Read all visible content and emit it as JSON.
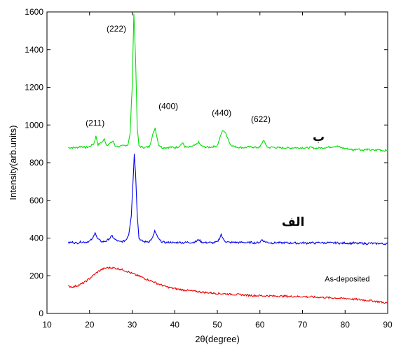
{
  "chart_data": {
    "type": "line",
    "title": "",
    "xlabel": "2θ(degree)",
    "ylabel": "Intensity(arb.units)",
    "xlim": [
      10,
      90
    ],
    "ylim": [
      0,
      1600
    ],
    "x_ticks": [
      "10",
      "20",
      "30",
      "40",
      "50",
      "60",
      "70",
      "80",
      "90"
    ],
    "y_ticks": [
      "0",
      "200",
      "400",
      "600",
      "800",
      "1000",
      "1200",
      "1400",
      "1600"
    ],
    "grid": false,
    "series": [
      {
        "name": "ب",
        "color": "#00e000",
        "points": [
          [
            15,
            880
          ],
          [
            17,
            880
          ],
          [
            18,
            887
          ],
          [
            19,
            880
          ],
          [
            20,
            885
          ],
          [
            21,
            900
          ],
          [
            21.5,
            940
          ],
          [
            22,
            895
          ],
          [
            23,
            910
          ],
          [
            23.5,
            925
          ],
          [
            24,
            893
          ],
          [
            25,
            905
          ],
          [
            25.5,
            915
          ],
          [
            26,
            888
          ],
          [
            27,
            885
          ],
          [
            28,
            890
          ],
          [
            29,
            895
          ],
          [
            29.5,
            950
          ],
          [
            30,
            1200
          ],
          [
            30.4,
            1590
          ],
          [
            30.8,
            1360
          ],
          [
            31.2,
            980
          ],
          [
            31.6,
            890
          ],
          [
            32,
            885
          ],
          [
            33,
            880
          ],
          [
            34,
            885
          ],
          [
            34.5,
            920
          ],
          [
            35,
            960
          ],
          [
            35.4,
            985
          ],
          [
            35.8,
            940
          ],
          [
            36.2,
            895
          ],
          [
            37,
            880
          ],
          [
            38,
            880
          ],
          [
            39,
            882
          ],
          [
            40,
            880
          ],
          [
            41,
            885
          ],
          [
            41.8,
            905
          ],
          [
            42.4,
            885
          ],
          [
            43,
            880
          ],
          [
            44,
            885
          ],
          [
            45,
            895
          ],
          [
            45.6,
            908
          ],
          [
            46.2,
            890
          ],
          [
            47,
            883
          ],
          [
            48,
            882
          ],
          [
            49,
            885
          ],
          [
            50,
            890
          ],
          [
            50.6,
            930
          ],
          [
            51,
            960
          ],
          [
            51.4,
            972
          ],
          [
            51.8,
            962
          ],
          [
            52.4,
            935
          ],
          [
            53,
            898
          ],
          [
            54,
            885
          ],
          [
            55,
            882
          ],
          [
            56,
            880
          ],
          [
            57,
            882
          ],
          [
            58,
            885
          ],
          [
            59,
            880
          ],
          [
            60,
            882
          ],
          [
            60.5,
            905
          ],
          [
            60.9,
            922
          ],
          [
            61.3,
            895
          ],
          [
            62,
            880
          ],
          [
            63,
            882
          ],
          [
            64,
            880
          ],
          [
            65,
            878
          ],
          [
            66,
            880
          ],
          [
            67,
            877
          ],
          [
            68,
            880
          ],
          [
            69,
            878
          ],
          [
            70,
            880
          ],
          [
            71,
            878
          ],
          [
            72,
            880
          ],
          [
            73,
            876
          ],
          [
            74,
            878
          ],
          [
            75,
            880
          ],
          [
            76,
            882
          ],
          [
            77,
            885
          ],
          [
            78,
            888
          ],
          [
            79,
            880
          ],
          [
            80,
            876
          ],
          [
            81,
            872
          ],
          [
            82,
            868
          ],
          [
            83,
            875
          ],
          [
            84,
            866
          ],
          [
            85,
            870
          ],
          [
            86,
            868
          ],
          [
            87,
            865
          ],
          [
            88,
            870
          ],
          [
            89,
            864
          ],
          [
            90,
            866
          ]
        ]
      },
      {
        "name": "الف",
        "color": "#0000ee",
        "points": [
          [
            15,
            375
          ],
          [
            16,
            378
          ],
          [
            17,
            373
          ],
          [
            18,
            380
          ],
          [
            19,
            378
          ],
          [
            20,
            383
          ],
          [
            20.8,
            400
          ],
          [
            21.3,
            432
          ],
          [
            21.8,
            398
          ],
          [
            22.5,
            386
          ],
          [
            23,
            380
          ],
          [
            24,
            385
          ],
          [
            24.8,
            400
          ],
          [
            25.3,
            412
          ],
          [
            25.8,
            395
          ],
          [
            26.5,
            386
          ],
          [
            27,
            380
          ],
          [
            28,
            383
          ],
          [
            28.6,
            392
          ],
          [
            29.2,
            420
          ],
          [
            29.8,
            520
          ],
          [
            30.2,
            700
          ],
          [
            30.5,
            845
          ],
          [
            30.8,
            750
          ],
          [
            31.2,
            520
          ],
          [
            31.6,
            400
          ],
          [
            32.2,
            386
          ],
          [
            33,
            380
          ],
          [
            34,
            382
          ],
          [
            34.8,
            400
          ],
          [
            35.3,
            438
          ],
          [
            35.8,
            412
          ],
          [
            36.4,
            390
          ],
          [
            37,
            380
          ],
          [
            38,
            376
          ],
          [
            39,
            378
          ],
          [
            40,
            374
          ],
          [
            41,
            378
          ],
          [
            42,
            375
          ],
          [
            43,
            378
          ],
          [
            44,
            376
          ],
          [
            45,
            381
          ],
          [
            45.6,
            392
          ],
          [
            46.2,
            380
          ],
          [
            47,
            375
          ],
          [
            48,
            377
          ],
          [
            49,
            374
          ],
          [
            50,
            380
          ],
          [
            50.5,
            398
          ],
          [
            50.9,
            420
          ],
          [
            51.3,
            396
          ],
          [
            52,
            381
          ],
          [
            53,
            376
          ],
          [
            54,
            378
          ],
          [
            55,
            376
          ],
          [
            56,
            378
          ],
          [
            57,
            375
          ],
          [
            58,
            377
          ],
          [
            59,
            374
          ],
          [
            60,
            378
          ],
          [
            60.5,
            392
          ],
          [
            61,
            382
          ],
          [
            62,
            376
          ],
          [
            63,
            374
          ],
          [
            64,
            376
          ],
          [
            65,
            374
          ],
          [
            66,
            376
          ],
          [
            67,
            373
          ],
          [
            68,
            375
          ],
          [
            69,
            372
          ],
          [
            70,
            375
          ],
          [
            71,
            373
          ],
          [
            72,
            376
          ],
          [
            73,
            373
          ],
          [
            74,
            377
          ],
          [
            75,
            374
          ],
          [
            76,
            376
          ],
          [
            77,
            373
          ],
          [
            78,
            375
          ],
          [
            79,
            372
          ],
          [
            80,
            374
          ],
          [
            81,
            372
          ],
          [
            82,
            374
          ],
          [
            83,
            371
          ],
          [
            84,
            373
          ],
          [
            85,
            370
          ],
          [
            86,
            373
          ],
          [
            87,
            370
          ],
          [
            88,
            372
          ],
          [
            89,
            369
          ],
          [
            90,
            371
          ]
        ]
      },
      {
        "name": "As-deposited",
        "color": "#ee0000",
        "points": [
          [
            15,
            145
          ],
          [
            16,
            140
          ],
          [
            17,
            147
          ],
          [
            18,
            155
          ],
          [
            19,
            168
          ],
          [
            20,
            185
          ],
          [
            21,
            205
          ],
          [
            22,
            222
          ],
          [
            23,
            235
          ],
          [
            24,
            242
          ],
          [
            25,
            243
          ],
          [
            26,
            240
          ],
          [
            27,
            236
          ],
          [
            28,
            230
          ],
          [
            29,
            222
          ],
          [
            30,
            212
          ],
          [
            31,
            203
          ],
          [
            32,
            195
          ],
          [
            33,
            185
          ],
          [
            34,
            176
          ],
          [
            35,
            168
          ],
          [
            36,
            158
          ],
          [
            37,
            150
          ],
          [
            38,
            142
          ],
          [
            39,
            136
          ],
          [
            40,
            132
          ],
          [
            41,
            128
          ],
          [
            42,
            125
          ],
          [
            43,
            122
          ],
          [
            44,
            119
          ],
          [
            45,
            117
          ],
          [
            46,
            114
          ],
          [
            47,
            112
          ],
          [
            48,
            110
          ],
          [
            49,
            108
          ],
          [
            50,
            106
          ],
          [
            51,
            105
          ],
          [
            52,
            104
          ],
          [
            53,
            102
          ],
          [
            54,
            101
          ],
          [
            55,
            100
          ],
          [
            56,
            99
          ],
          [
            57,
            97
          ],
          [
            58,
            96
          ],
          [
            59,
            94
          ],
          [
            60,
            95
          ],
          [
            61,
            93
          ],
          [
            62,
            94
          ],
          [
            63,
            92
          ],
          [
            64,
            93
          ],
          [
            65,
            91
          ],
          [
            66,
            92
          ],
          [
            67,
            90
          ],
          [
            68,
            91
          ],
          [
            69,
            89
          ],
          [
            70,
            90
          ],
          [
            71,
            88
          ],
          [
            72,
            88
          ],
          [
            73,
            86
          ],
          [
            74,
            86
          ],
          [
            75,
            85
          ],
          [
            76,
            84
          ],
          [
            77,
            82
          ],
          [
            78,
            82
          ],
          [
            79,
            80
          ],
          [
            80,
            80
          ],
          [
            81,
            78
          ],
          [
            82,
            76
          ],
          [
            83,
            74
          ],
          [
            84,
            72
          ],
          [
            85,
            70
          ],
          [
            86,
            68
          ],
          [
            87,
            65
          ],
          [
            88,
            62
          ],
          [
            89,
            58
          ],
          [
            90,
            55
          ]
        ]
      }
    ],
    "annotations": [
      {
        "text": "(222)",
        "x": 26.3,
        "y": 1495
      },
      {
        "text": "(211)",
        "x": 21.3,
        "y": 995
      },
      {
        "text": "(400)",
        "x": 38.5,
        "y": 1085
      },
      {
        "text": "(440)",
        "x": 51.0,
        "y": 1050
      },
      {
        "text": "(622)",
        "x": 60.2,
        "y": 1015
      }
    ],
    "curve_labels": [
      {
        "text": "ب",
        "x": 73.8,
        "y": 915,
        "series": 0
      },
      {
        "text": "الف",
        "x": 67.8,
        "y": 465,
        "series": 1
      },
      {
        "text": "As-deposited",
        "x": 80.5,
        "y": 170,
        "series": 2
      }
    ]
  }
}
